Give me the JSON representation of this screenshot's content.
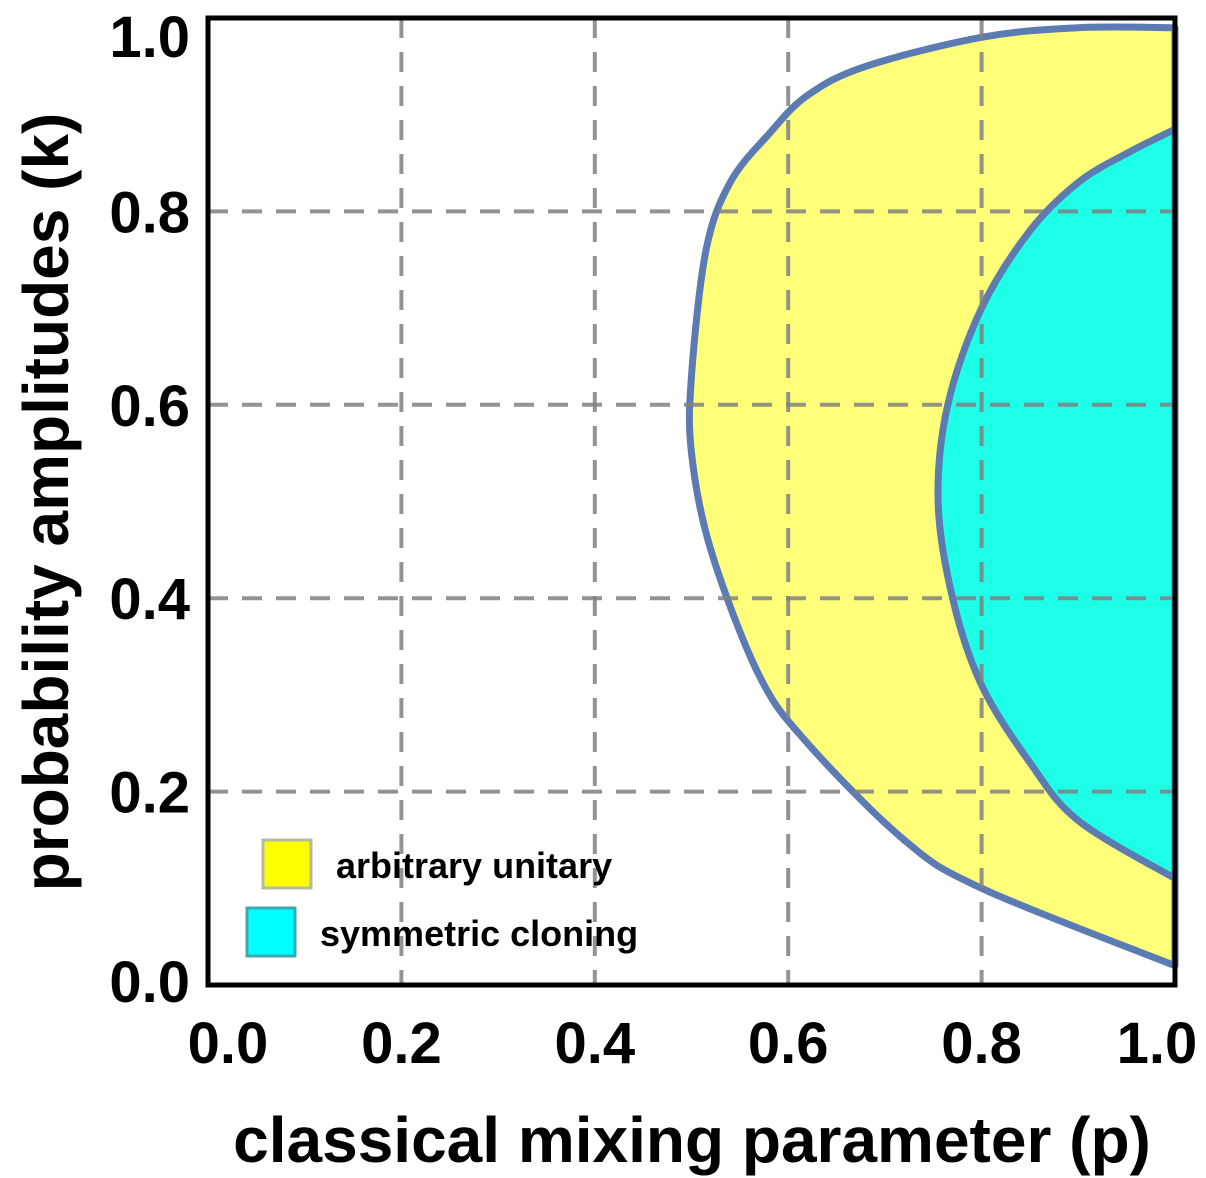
{
  "chart_data": {
    "type": "area",
    "xlabel": "classical mixing parameter (p)",
    "ylabel": "probability amplitudes (k)",
    "xlim": [
      0,
      1
    ],
    "ylim": [
      0,
      1
    ],
    "x_ticks": [
      "0.0",
      "0.2",
      "0.4",
      "0.6",
      "0.8",
      "1.0"
    ],
    "y_ticks": [
      "0.0",
      "0.2",
      "0.4",
      "0.6",
      "0.8",
      "1.0"
    ],
    "grid": true,
    "grid_style": "dashed",
    "legend_position": "bottom-left",
    "boundary_color": "#5b7bb2",
    "series": [
      {
        "name": "arbitrary unitary",
        "color": "#ffff7a",
        "legend_color": "#ffff00",
        "boundary": [
          [
            1.0,
            0.02
          ],
          [
            0.8,
            0.1
          ],
          [
            0.72,
            0.15
          ],
          [
            0.62,
            0.25
          ],
          [
            0.57,
            0.32
          ],
          [
            0.52,
            0.45
          ],
          [
            0.5,
            0.55
          ],
          [
            0.5,
            0.63
          ],
          [
            0.515,
            0.76
          ],
          [
            0.54,
            0.83
          ],
          [
            0.58,
            0.88
          ],
          [
            0.62,
            0.92
          ],
          [
            0.68,
            0.95
          ],
          [
            0.8,
            0.98
          ],
          [
            0.9,
            0.99
          ],
          [
            1.0,
            0.99
          ]
        ]
      },
      {
        "name": "symmetric cloning",
        "color": "#1effe8",
        "legend_color": "#00ffff",
        "boundary": [
          [
            1.0,
            0.11
          ],
          [
            0.9,
            0.17
          ],
          [
            0.85,
            0.23
          ],
          [
            0.8,
            0.31
          ],
          [
            0.77,
            0.4
          ],
          [
            0.755,
            0.5
          ],
          [
            0.765,
            0.6
          ],
          [
            0.8,
            0.7
          ],
          [
            0.85,
            0.78
          ],
          [
            0.9,
            0.83
          ],
          [
            0.95,
            0.86
          ],
          [
            1.0,
            0.885
          ]
        ]
      }
    ]
  }
}
